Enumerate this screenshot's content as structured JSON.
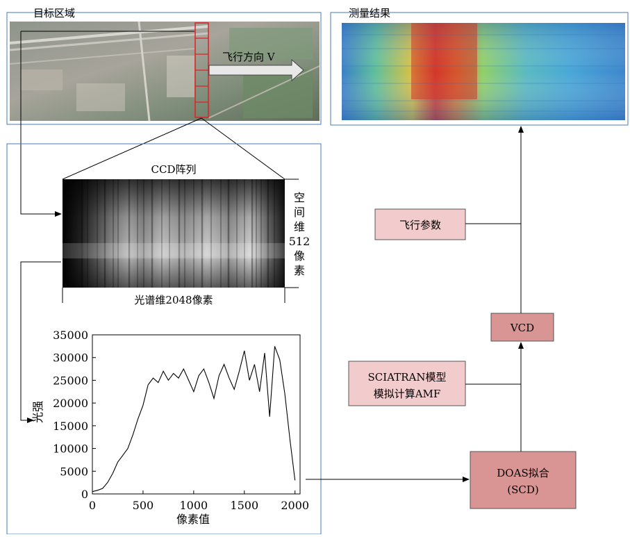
{
  "target_area": {
    "label": "目标区域",
    "direction_label": "飞行方向 V"
  },
  "result": {
    "label": "测量结果"
  },
  "ccd": {
    "title": "CCD阵列",
    "vertical_label": [
      "空",
      "间",
      "维",
      "512",
      "像",
      "素"
    ],
    "horizontal_label": "光谱维2048像素"
  },
  "spectrum": {
    "ylabel": "光强",
    "xlabel": "像素值",
    "yticks": [
      "0",
      "5000",
      "10000",
      "15000",
      "20000",
      "25000",
      "30000",
      "35000"
    ],
    "xticks": [
      "0",
      "500",
      "1000",
      "1500",
      "2000"
    ]
  },
  "boxes": {
    "flight_params": "飞行参数",
    "vcd": "VCD",
    "sciatran_line1": "SCIATRAN模型",
    "sciatran_line2": "模拟计算AMF",
    "doas_line1": "DOAS拟合",
    "doas_line2": "(SCD)"
  },
  "colors": {
    "frame": "#4a7ab8",
    "box_light": "#f2cccc",
    "box_dark": "#d99494",
    "scan_box": "#e02020"
  },
  "chart_data": {
    "type": "line",
    "x": [
      0,
      50,
      100,
      150,
      200,
      250,
      300,
      350,
      400,
      450,
      500,
      550,
      600,
      650,
      700,
      750,
      800,
      850,
      900,
      950,
      1000,
      1050,
      1100,
      1150,
      1200,
      1250,
      1300,
      1350,
      1400,
      1450,
      1500,
      1550,
      1600,
      1650,
      1700,
      1750,
      1800,
      1850,
      1900,
      1950,
      2000
    ],
    "y": [
      500,
      800,
      1200,
      2500,
      4500,
      7000,
      8500,
      10000,
      13000,
      16500,
      19500,
      24000,
      25500,
      24500,
      27000,
      25000,
      26500,
      25500,
      27500,
      25000,
      22500,
      26000,
      27500,
      24500,
      21000,
      26000,
      28500,
      25500,
      23000,
      27000,
      31500,
      25000,
      28500,
      22500,
      31000,
      17000,
      32500,
      29500,
      22000,
      12000,
      3000
    ],
    "xlabel": "像素值",
    "ylabel": "光强",
    "xlim": [
      0,
      2050
    ],
    "ylim": [
      0,
      35000
    ],
    "grid": false
  }
}
